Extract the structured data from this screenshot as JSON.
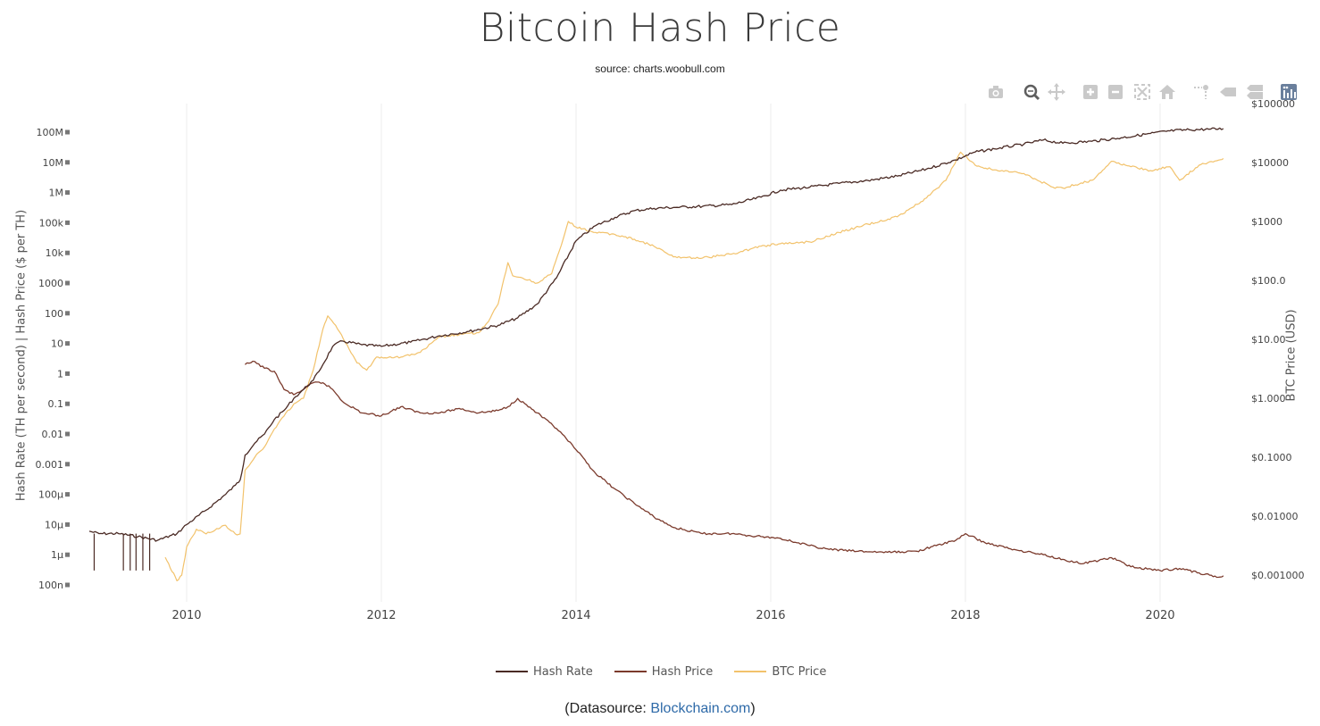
{
  "title": "Bitcoin Hash Price",
  "subtitle": "source: charts.woobull.com",
  "datasource": {
    "prefix": "(Datasource: ",
    "link": "Blockchain.com",
    "suffix": ")"
  },
  "modebar": {
    "buttons": [
      {
        "name": "camera-icon"
      },
      {
        "name": "zoom-icon"
      },
      {
        "name": "pan-icon"
      },
      {
        "name": "zoom-in-icon"
      },
      {
        "name": "zoom-out-icon"
      },
      {
        "name": "autoscale-icon"
      },
      {
        "name": "home-icon"
      },
      {
        "name": "spikelines-icon"
      },
      {
        "name": "hover-closest-icon"
      },
      {
        "name": "hover-compare-icon"
      },
      {
        "name": "plotly-logo-icon"
      }
    ]
  },
  "chart_data": {
    "type": "line",
    "title": "Bitcoin Hash Price",
    "subtitle": "source: charts.woobull.com",
    "ylabel_left": "Hash Rate (TH per second) | Hash Price ($ per TH)",
    "ylabel_right": "BTC Price (USD)",
    "x_ticks": [
      "2010",
      "2012",
      "2014",
      "2016",
      "2018",
      "2020"
    ],
    "y_left_ticks": [
      "100n",
      "1µ",
      "10µ",
      "100µ",
      "0.001",
      "0.01",
      "0.1",
      "1",
      "10",
      "100",
      "1000",
      "10k",
      "100k",
      "1M",
      "10M",
      "100M"
    ],
    "y_right_ticks": [
      "$0.001000",
      "$0.01000",
      "$0.1000",
      "$1.000",
      "$10.00",
      "$100.0",
      "$1000",
      "$10000",
      "$100000"
    ],
    "y_left_log_range": [
      -7,
      8
    ],
    "y_right_log_range": [
      -3,
      5
    ],
    "x_range": [
      2009.0,
      2020.67
    ],
    "grid": "vertical",
    "legend_position": "bottom-center",
    "series": [
      {
        "name": "Hash Rate",
        "color": "#4a2a24",
        "axis": "left",
        "x": [
          2009.0,
          2009.1,
          2009.3,
          2009.5,
          2009.7,
          2009.9,
          2010.0,
          2010.2,
          2010.4,
          2010.5,
          2010.55,
          2010.6,
          2010.7,
          2010.8,
          2010.9,
          2011.0,
          2011.1,
          2011.2,
          2011.3,
          2011.4,
          2011.5,
          2011.6,
          2011.8,
          2012.0,
          2012.3,
          2012.6,
          2012.9,
          2013.2,
          2013.4,
          2013.6,
          2013.8,
          2014.0,
          2014.2,
          2014.4,
          2014.6,
          2014.8,
          2015.0,
          2015.3,
          2015.6,
          2015.9,
          2016.1,
          2016.4,
          2016.7,
          2017.0,
          2017.3,
          2017.6,
          2017.9,
          2018.1,
          2018.3,
          2018.6,
          2018.8,
          2019.0,
          2019.3,
          2019.6,
          2019.9,
          2020.1,
          2020.3,
          2020.5,
          2020.65
        ],
        "y": [
          6e-06,
          5e-06,
          5e-06,
          4e-06,
          3e-06,
          5e-06,
          1e-05,
          3e-05,
          0.0001,
          0.0002,
          0.0003,
          0.002,
          0.005,
          0.01,
          0.03,
          0.06,
          0.15,
          0.3,
          0.6,
          2,
          8,
          12,
          9,
          8,
          11,
          18,
          25,
          40,
          70,
          200,
          1500,
          25000.0,
          80000.0,
          150000.0,
          250000.0,
          300000.0,
          320000.0,
          350000.0,
          400000.0,
          700000.0,
          1200000.0,
          1500000.0,
          2000000.0,
          2500000.0,
          3500000.0,
          6000000.0,
          12000000.0,
          22000000.0,
          28000000.0,
          40000000.0,
          55000000.0,
          43000000.0,
          50000000.0,
          65000000.0,
          90000000.0,
          110000000.0,
          120000000.0,
          125000000.0,
          130000000.0
        ]
      },
      {
        "name": "Hash Price",
        "color": "#7b3a2c",
        "axis": "left",
        "x": [
          2010.6,
          2010.7,
          2010.8,
          2010.9,
          2011.0,
          2011.1,
          2011.2,
          2011.3,
          2011.4,
          2011.5,
          2011.6,
          2011.8,
          2012.0,
          2012.2,
          2012.4,
          2012.6,
          2012.8,
          2013.0,
          2013.2,
          2013.3,
          2013.4,
          2013.6,
          2013.8,
          2013.9,
          2014.0,
          2014.2,
          2014.4,
          2014.6,
          2014.8,
          2015.0,
          2015.3,
          2015.6,
          2015.9,
          2016.1,
          2016.4,
          2016.6,
          2016.9,
          2017.2,
          2017.5,
          2017.7,
          2017.9,
          2018.0,
          2018.2,
          2018.5,
          2018.8,
          2019.0,
          2019.2,
          2019.5,
          2019.7,
          2020.0,
          2020.2,
          2020.4,
          2020.6,
          2020.65
        ],
        "y": [
          2,
          2.5,
          1.5,
          1.2,
          0.3,
          0.2,
          0.3,
          0.5,
          0.5,
          0.3,
          0.12,
          0.05,
          0.04,
          0.08,
          0.05,
          0.05,
          0.07,
          0.05,
          0.06,
          0.08,
          0.15,
          0.05,
          0.015,
          0.007,
          0.003,
          0.0005,
          0.00015,
          5e-05,
          1.8e-05,
          8e-06,
          5e-06,
          5e-06,
          4e-06,
          3.5e-06,
          2e-06,
          1.5e-06,
          1.3e-06,
          1.2e-06,
          1.3e-06,
          2e-06,
          3e-06,
          5e-06,
          2.5e-06,
          1.5e-06,
          1e-06,
          7e-07,
          5e-07,
          8e-07,
          4e-07,
          3e-07,
          3.5e-07,
          2.5e-07,
          1.8e-07,
          2e-07
        ]
      },
      {
        "name": "BTC Price",
        "color": "#f2c26b",
        "axis": "right",
        "x": [
          2009.78,
          2009.9,
          2009.95,
          2010.0,
          2010.1,
          2010.2,
          2010.4,
          2010.5,
          2010.55,
          2010.6,
          2010.7,
          2010.8,
          2010.9,
          2011.0,
          2011.1,
          2011.2,
          2011.3,
          2011.4,
          2011.45,
          2011.55,
          2011.65,
          2011.75,
          2011.85,
          2011.95,
          2012.0,
          2012.2,
          2012.4,
          2012.6,
          2012.8,
          2013.0,
          2013.1,
          2013.2,
          2013.3,
          2013.35,
          2013.45,
          2013.6,
          2013.75,
          2013.85,
          2013.92,
          2014.0,
          2014.2,
          2014.4,
          2014.6,
          2014.8,
          2015.0,
          2015.3,
          2015.6,
          2015.9,
          2016.1,
          2016.4,
          2016.7,
          2017.0,
          2017.3,
          2017.6,
          2017.8,
          2017.95,
          2018.1,
          2018.3,
          2018.6,
          2018.9,
          2019.0,
          2019.3,
          2019.5,
          2019.7,
          2019.9,
          2020.1,
          2020.2,
          2020.4,
          2020.6,
          2020.65
        ],
        "y": [
          0.002,
          0.0008,
          0.001,
          0.003,
          0.006,
          0.005,
          0.007,
          0.005,
          0.005,
          0.06,
          0.1,
          0.15,
          0.3,
          0.5,
          0.8,
          1,
          3,
          15,
          25,
          15,
          8,
          4,
          3,
          5,
          5,
          5,
          6,
          11,
          12,
          13,
          20,
          40,
          200,
          120,
          110,
          90,
          130,
          400,
          1000,
          800,
          650,
          600,
          500,
          380,
          250,
          240,
          280,
          380,
          420,
          450,
          650,
          900,
          1200,
          2500,
          5000,
          15000,
          9000,
          7500,
          6500,
          3800,
          3700,
          5000,
          10500,
          8500,
          7300,
          8500,
          5000,
          9000,
          11000,
          11700
        ]
      }
    ]
  }
}
